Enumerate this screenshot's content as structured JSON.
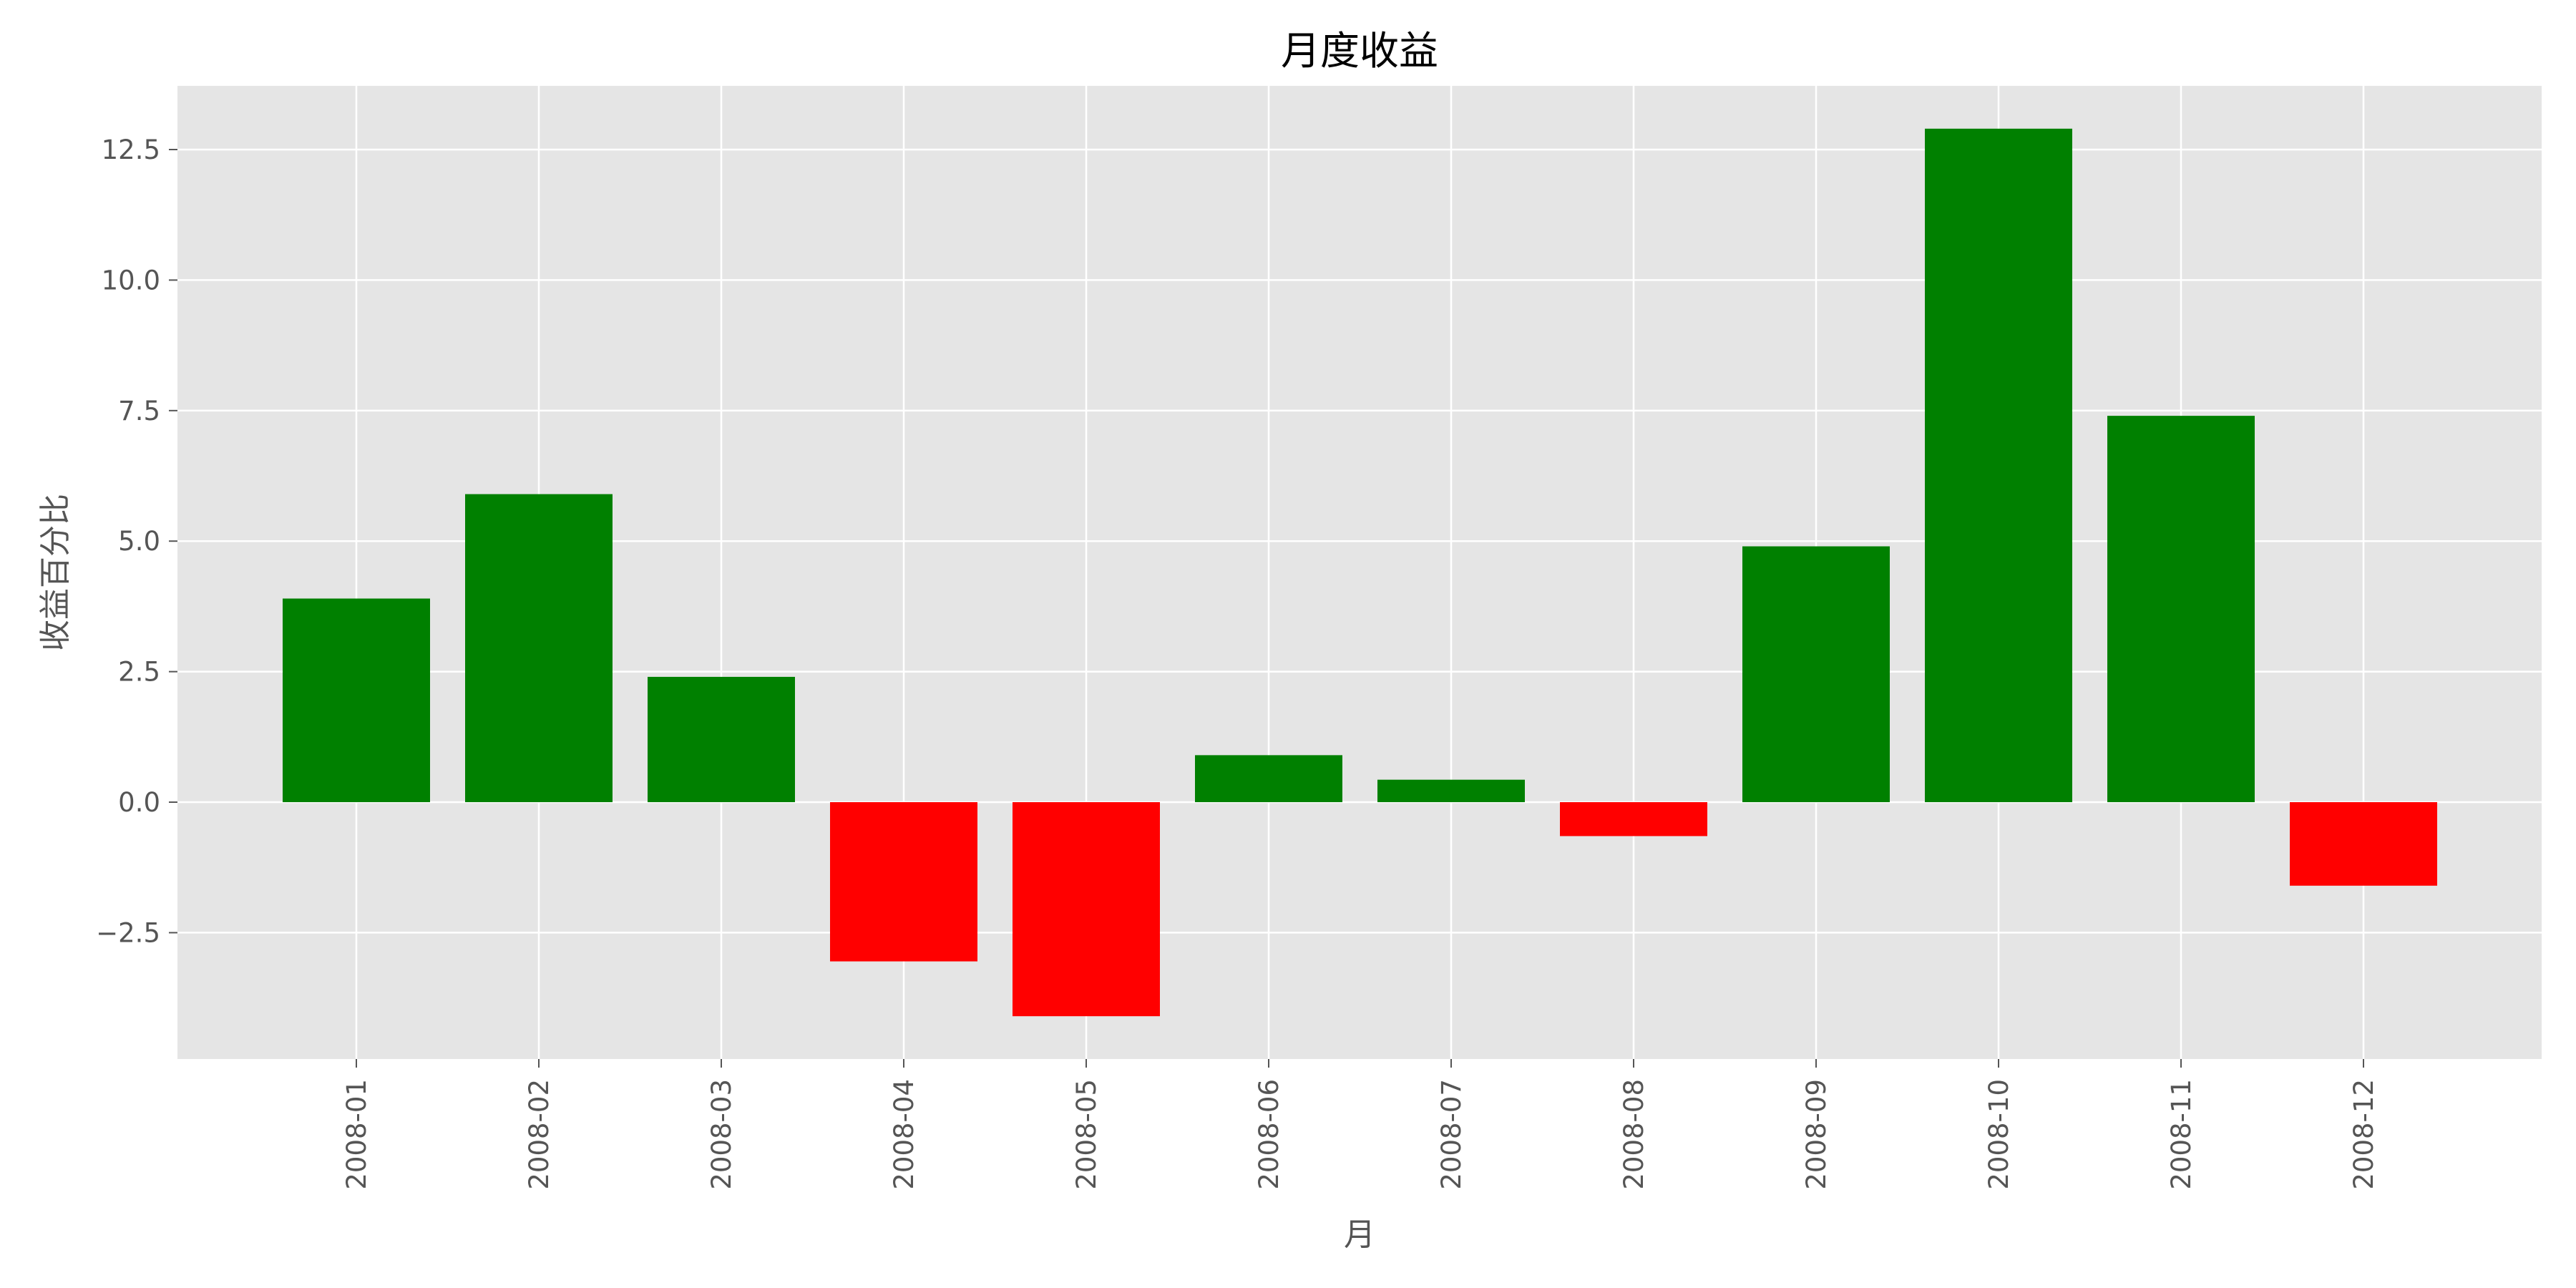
{
  "chart_data": {
    "type": "bar",
    "title": "月度收益",
    "xlabel": "月",
    "ylabel": "收益百分比",
    "categories": [
      "2008-01",
      "2008-02",
      "2008-03",
      "2008-04",
      "2008-05",
      "2008-06",
      "2008-07",
      "2008-08",
      "2008-09",
      "2008-10",
      "2008-11",
      "2008-12"
    ],
    "values": [
      3.9,
      5.9,
      2.4,
      -3.05,
      -4.1,
      0.9,
      0.43,
      -0.65,
      4.9,
      12.9,
      7.4,
      -1.6
    ],
    "ylim": [
      -4.92,
      13.72
    ],
    "yticks": [
      -2.5,
      0.0,
      2.5,
      5.0,
      7.5,
      10.0,
      12.5
    ],
    "ytick_labels": [
      "−2.5",
      "0.0",
      "2.5",
      "5.0",
      "7.5",
      "10.0",
      "12.5"
    ],
    "grid": true,
    "colors": {
      "positive": "#008000",
      "negative": "#ff0000",
      "plot_background": "#e5e5e5",
      "grid": "#ffffff"
    }
  }
}
